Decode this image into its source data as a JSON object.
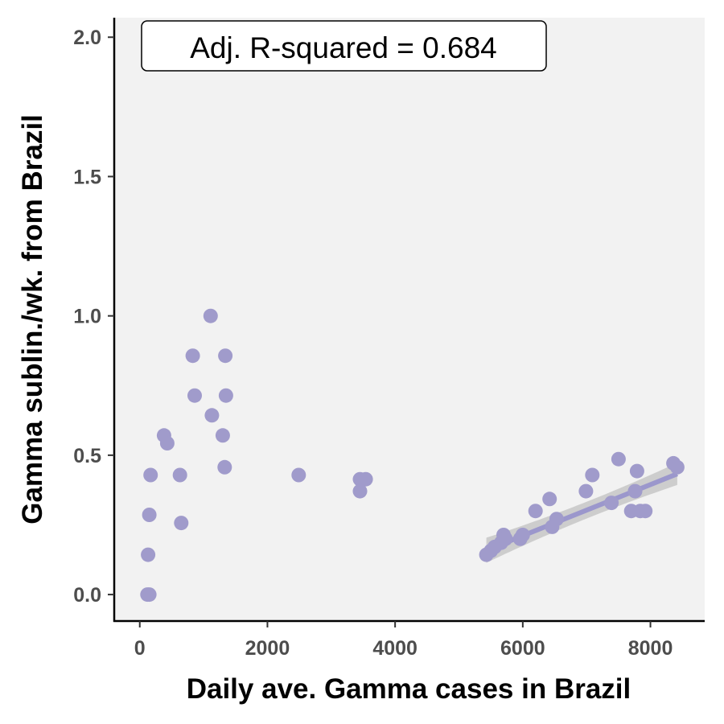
{
  "chart_data": {
    "type": "scatter",
    "xlabel": "Daily ave. Gamma cases in Brazil",
    "ylabel": "Gamma sublin./wk. from Brazil",
    "xlim": [
      -400,
      8850
    ],
    "ylim": [
      -0.095,
      2.07
    ],
    "x_ticks": [
      0,
      2000,
      4000,
      6000,
      8000
    ],
    "x_tick_labels": [
      "0",
      "2000",
      "4000",
      "6000",
      "8000"
    ],
    "y_ticks": [
      0.0,
      0.5,
      1.0,
      1.5,
      2.0
    ],
    "y_tick_labels": [
      "0.0",
      "0.5",
      "1.0",
      "1.5",
      "2.0"
    ],
    "grid": false,
    "annotation": "Adj. R-squared = 0.684",
    "colors": {
      "points": "#a09bcb",
      "fit_line": "#9b97cc",
      "ribbon": "#c7c7c7",
      "panel_bg": "#f2f2f2",
      "axis": "#000000",
      "tick_text": "#4d4d4d"
    },
    "points": [
      {
        "x": 120,
        "y": 0.0
      },
      {
        "x": 150,
        "y": 0.0
      },
      {
        "x": 130,
        "y": 0.143
      },
      {
        "x": 150,
        "y": 0.286
      },
      {
        "x": 170,
        "y": 0.429
      },
      {
        "x": 380,
        "y": 0.571
      },
      {
        "x": 430,
        "y": 0.543
      },
      {
        "x": 630,
        "y": 0.429
      },
      {
        "x": 650,
        "y": 0.257
      },
      {
        "x": 830,
        "y": 0.857
      },
      {
        "x": 860,
        "y": 0.714
      },
      {
        "x": 1110,
        "y": 1.0
      },
      {
        "x": 1130,
        "y": 0.643
      },
      {
        "x": 1300,
        "y": 0.571
      },
      {
        "x": 1340,
        "y": 0.857
      },
      {
        "x": 1350,
        "y": 0.714
      },
      {
        "x": 1330,
        "y": 0.457
      },
      {
        "x": 2490,
        "y": 0.429
      },
      {
        "x": 3450,
        "y": 0.414
      },
      {
        "x": 3540,
        "y": 0.414
      },
      {
        "x": 3450,
        "y": 0.371
      },
      {
        "x": 5430,
        "y": 0.143
      },
      {
        "x": 5500,
        "y": 0.157
      },
      {
        "x": 5560,
        "y": 0.171
      },
      {
        "x": 5660,
        "y": 0.186
      },
      {
        "x": 5700,
        "y": 0.214
      },
      {
        "x": 5730,
        "y": 0.2
      },
      {
        "x": 5960,
        "y": 0.2
      },
      {
        "x": 6000,
        "y": 0.214
      },
      {
        "x": 6200,
        "y": 0.3
      },
      {
        "x": 6420,
        "y": 0.343
      },
      {
        "x": 6460,
        "y": 0.243
      },
      {
        "x": 6530,
        "y": 0.271
      },
      {
        "x": 6990,
        "y": 0.371
      },
      {
        "x": 7090,
        "y": 0.429
      },
      {
        "x": 7390,
        "y": 0.329
      },
      {
        "x": 7500,
        "y": 0.486
      },
      {
        "x": 7700,
        "y": 0.3
      },
      {
        "x": 7760,
        "y": 0.371
      },
      {
        "x": 7790,
        "y": 0.443
      },
      {
        "x": 7840,
        "y": 0.3
      },
      {
        "x": 7920,
        "y": 0.3
      },
      {
        "x": 8360,
        "y": 0.471
      },
      {
        "x": 8420,
        "y": 0.457
      }
    ],
    "fit": {
      "x_range": [
        5430,
        8420
      ],
      "y_start": 0.159,
      "y_end": 0.433,
      "ci_halfwidth_start": 0.045,
      "ci_halfwidth_mid": 0.018,
      "ci_halfwidth_end": 0.04
    }
  }
}
